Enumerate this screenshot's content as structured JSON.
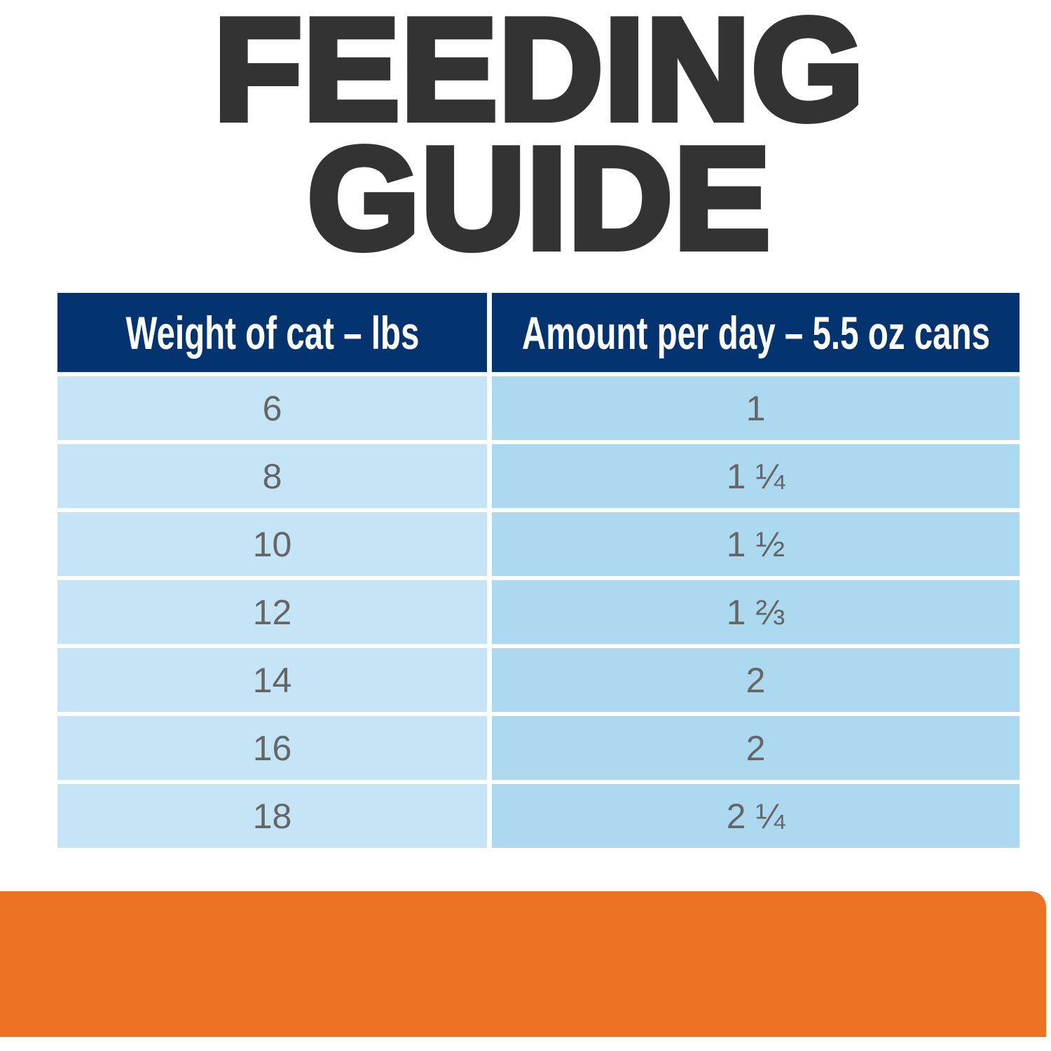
{
  "title": {
    "line1": "FEEDING",
    "line2": "GUIDE"
  },
  "table": {
    "headers": [
      "Weight of cat – lbs",
      "Amount per day – 5.5 oz cans"
    ],
    "rows": [
      [
        "6",
        "1"
      ],
      [
        "8",
        "1 ¼"
      ],
      [
        "10",
        "1 ½"
      ],
      [
        "12",
        "1 ⅔"
      ],
      [
        "14",
        "2"
      ],
      [
        "16",
        "2"
      ],
      [
        "18",
        "2 ¼"
      ]
    ]
  },
  "colors": {
    "title": "#333333",
    "header_bg": "#03346f",
    "col1_bg": "#c5e4f5",
    "col2_bg": "#acd9ef",
    "cell_text": "#666666",
    "footer_band": "#ec7322"
  }
}
